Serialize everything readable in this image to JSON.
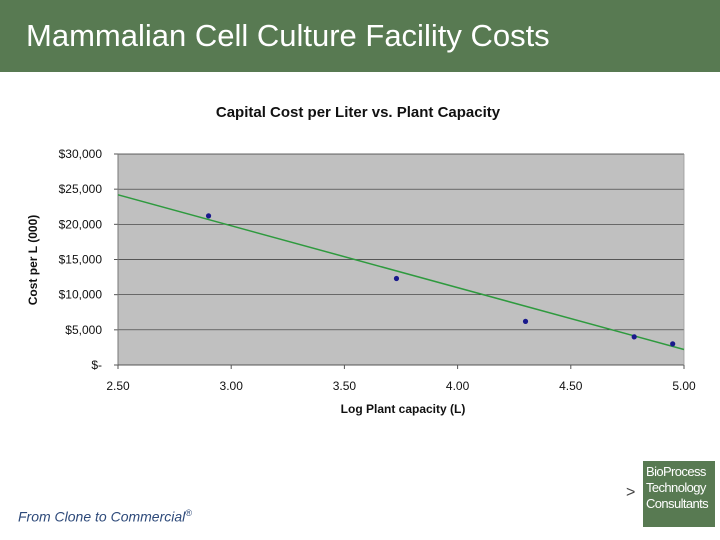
{
  "slide": {
    "title": "Mammalian Cell Culture Facility Costs",
    "footer": "From Clone to Commercial",
    "footer_mark": "®",
    "arrow": ">",
    "logo_lines": [
      "BioProcess",
      "Technology",
      "Consultants"
    ],
    "colors": {
      "header": "#587a52",
      "plot_bg": "#c0c0c0",
      "trendline": "#2e9a3e",
      "points": "#1a1a8c"
    }
  },
  "chart_data": {
    "type": "scatter",
    "title": "Capital Cost per Liter vs. Plant Capacity",
    "xlabel": "Log Plant capacity (L)",
    "ylabel": "Cost per L (000)",
    "xlim": [
      2.5,
      5.0
    ],
    "ylim": [
      0,
      30000
    ],
    "x_ticks": [
      2.5,
      3.0,
      3.5,
      4.0,
      4.5,
      5.0
    ],
    "x_tick_labels": [
      "2.50",
      "3.00",
      "3.50",
      "4.00",
      "4.50",
      "5.00"
    ],
    "y_ticks": [
      0,
      5000,
      10000,
      15000,
      20000,
      25000,
      30000
    ],
    "y_tick_labels": [
      "$-",
      "$5,000",
      "$10,000",
      "$15,000",
      "$20,000",
      "$25,000",
      "$30,000"
    ],
    "grid": true,
    "series": [
      {
        "x": [
          2.9,
          3.73,
          4.3,
          4.78,
          4.95
        ],
        "y": [
          21200,
          12300,
          6200,
          4000,
          3000
        ]
      }
    ],
    "trendline": {
      "type": "linear",
      "x": [
        2.5,
        5.0
      ],
      "y": [
        24200,
        2200
      ]
    }
  }
}
